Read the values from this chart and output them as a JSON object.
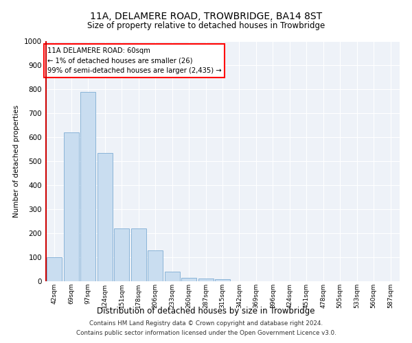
{
  "title": "11A, DELAMERE ROAD, TROWBRIDGE, BA14 8ST",
  "subtitle": "Size of property relative to detached houses in Trowbridge",
  "xlabel": "Distribution of detached houses by size in Trowbridge",
  "ylabel": "Number of detached properties",
  "bar_color": "#c9ddf0",
  "bar_edge_color": "#8ab4d8",
  "marker_color": "#cc0000",
  "background_color": "#eef2f8",
  "categories": [
    "42sqm",
    "69sqm",
    "97sqm",
    "124sqm",
    "151sqm",
    "178sqm",
    "206sqm",
    "233sqm",
    "260sqm",
    "287sqm",
    "315sqm",
    "342sqm",
    "369sqm",
    "396sqm",
    "424sqm",
    "451sqm",
    "478sqm",
    "505sqm",
    "533sqm",
    "560sqm",
    "587sqm"
  ],
  "values": [
    100,
    620,
    790,
    535,
    220,
    220,
    130,
    40,
    15,
    12,
    10,
    0,
    0,
    0,
    0,
    0,
    0,
    0,
    0,
    0,
    0
  ],
  "ylim": [
    0,
    1000
  ],
  "yticks": [
    0,
    100,
    200,
    300,
    400,
    500,
    600,
    700,
    800,
    900,
    1000
  ],
  "property_label": "11A DELAMERE ROAD: 60sqm",
  "pct_smaller": 1,
  "count_smaller": 26,
  "pct_larger": 99,
  "count_larger": 2435,
  "footer_line1": "Contains HM Land Registry data © Crown copyright and database right 2024.",
  "footer_line2": "Contains public sector information licensed under the Open Government Licence v3.0."
}
